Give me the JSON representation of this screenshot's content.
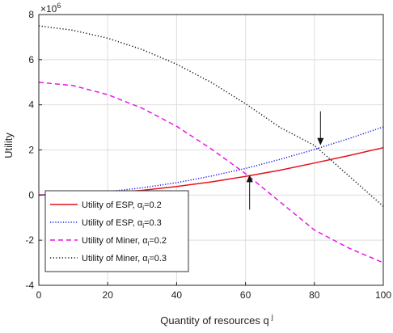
{
  "chart_data": {
    "type": "line",
    "xlabel": "Quantity of resources q",
    "xlabel_superscript": "j",
    "ylabel": "Utility",
    "y_exponent_label": "×10",
    "y_exponent_power": "6",
    "xlim": [
      0,
      100
    ],
    "ylim": [
      -4,
      8
    ],
    "x_ticks": [
      0,
      20,
      40,
      60,
      80,
      100
    ],
    "y_ticks": [
      -4,
      -2,
      0,
      2,
      4,
      6,
      8
    ],
    "x_tick_labels": [
      "0",
      "20",
      "40",
      "60",
      "80",
      "100"
    ],
    "y_tick_labels": [
      "-4",
      "-2",
      "0",
      "2",
      "4",
      "6",
      "8"
    ],
    "grid": true,
    "legend_position": "bottom-left",
    "x": [
      0,
      10,
      20,
      30,
      40,
      50,
      60,
      70,
      80,
      90,
      100
    ],
    "series": [
      {
        "legend_prefix": "Utility of ESP, ",
        "alpha_symbol": "α",
        "alpha_sub": "i",
        "alpha_value": "=0.2",
        "color": "#e8101a",
        "dash": "solid",
        "values": [
          0,
          0.03,
          0.1,
          0.21,
          0.38,
          0.58,
          0.83,
          1.1,
          1.42,
          1.75,
          2.1
        ]
      },
      {
        "legend_prefix": "Utility of ESP, ",
        "alpha_symbol": "α",
        "alpha_sub": "i",
        "alpha_value": "=0.3",
        "color": "#1a1ae6",
        "dash": "dotted",
        "values": [
          0,
          0.05,
          0.15,
          0.32,
          0.55,
          0.84,
          1.18,
          1.58,
          2.02,
          2.5,
          3.02
        ]
      },
      {
        "legend_prefix": "Utility of Miner, ",
        "alpha_symbol": "α",
        "alpha_sub": "i",
        "alpha_value": "=0.2",
        "color": "#e619e6",
        "dash": "dashed",
        "values": [
          5.0,
          4.85,
          4.45,
          3.85,
          3.05,
          2.05,
          0.95,
          -0.3,
          -1.55,
          -2.35,
          -3.0
        ]
      },
      {
        "legend_prefix": "Utility of Miner, ",
        "alpha_symbol": "α",
        "alpha_sub": "i",
        "alpha_value": "=0.3",
        "color": "#111111",
        "dash": "dashdot",
        "values": [
          7.5,
          7.3,
          6.95,
          6.45,
          5.8,
          5.0,
          4.05,
          3.0,
          2.2,
          0.85,
          -0.5
        ]
      }
    ],
    "annotations": [
      {
        "type": "arrow-down",
        "x": 82,
        "y": 2.1
      },
      {
        "type": "arrow-up",
        "x": 68,
        "y": 1.0
      }
    ]
  }
}
